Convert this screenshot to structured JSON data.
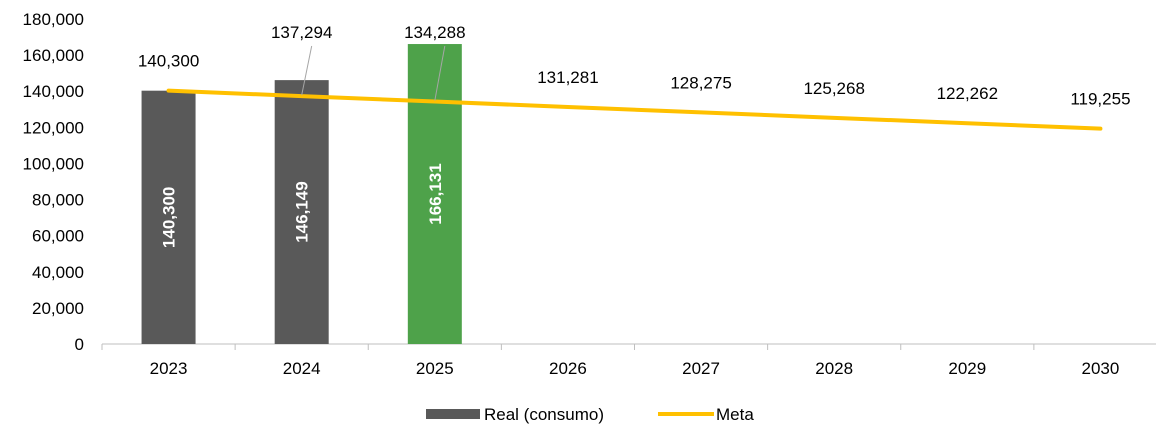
{
  "chart_data": {
    "type": "bar",
    "categories": [
      "2023",
      "2024",
      "2025",
      "2026",
      "2027",
      "2028",
      "2029",
      "2030"
    ],
    "ylim": [
      0,
      180000
    ],
    "y_ticks": [
      "0",
      "20,000",
      "40,000",
      "60,000",
      "80,000",
      "100,000",
      "120,000",
      "140,000",
      "160,000",
      "180,000"
    ],
    "title": "",
    "xlabel": "",
    "ylabel": "",
    "grid": false,
    "legend_position": "bottom",
    "series": [
      {
        "name": "Real (consumo)",
        "type": "bar",
        "values": [
          140300,
          146149,
          166131,
          null,
          null,
          null,
          null,
          null
        ],
        "labels": [
          "140,300",
          "146,149",
          "166,131",
          "",
          "",
          "",
          "",
          ""
        ],
        "colors": [
          "#595959",
          "#595959",
          "#4ea24a",
          null,
          null,
          null,
          null,
          null
        ],
        "legend_color": "#595959"
      },
      {
        "name": "Meta",
        "type": "line",
        "values": [
          140300,
          137294,
          134288,
          131281,
          128275,
          125268,
          122262,
          119255
        ],
        "labels": [
          "140,300",
          "137,294",
          "134,288",
          "131,281",
          "128,275",
          "125,268",
          "122,262",
          "119,255"
        ],
        "color": "#ffc000"
      }
    ]
  }
}
